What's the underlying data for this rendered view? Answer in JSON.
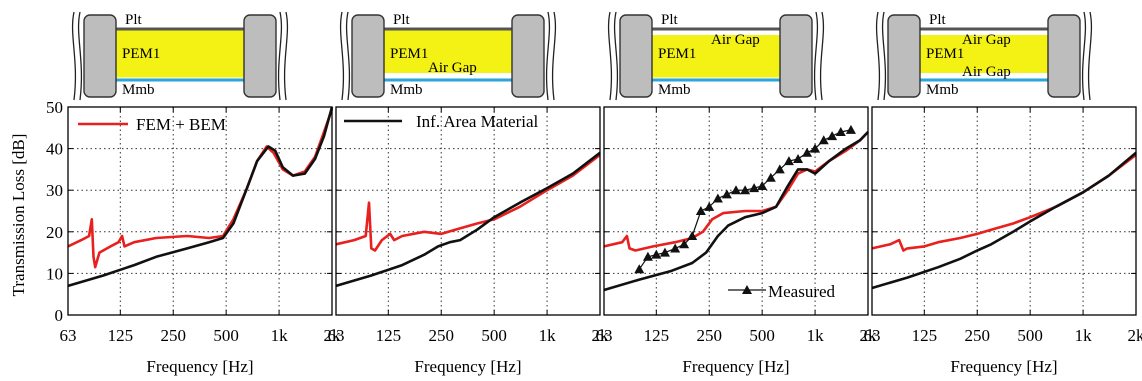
{
  "figure": {
    "ylabel": "Transmission Loss [dB]",
    "xlabel": "Frequency [Hz]"
  },
  "colors": {
    "fem_bem": "#e8201e",
    "inf_area": "#111111",
    "measured": "#111111",
    "pem_fill": "#f4f214",
    "membrane": "#2aa6d8",
    "plate": "#555555",
    "frame": "#bdbdbd"
  },
  "insets": [
    {
      "layers": [
        "Plt",
        "PEM1",
        "Mmb"
      ],
      "gap_top": false,
      "gap_bottom": false,
      "gap_labels": []
    },
    {
      "layers": [
        "Plt",
        "PEM1",
        "Mmb"
      ],
      "gap_top": false,
      "gap_bottom": true,
      "gap_labels": [
        "Air Gap"
      ]
    },
    {
      "layers": [
        "Plt",
        "PEM1",
        "Mmb"
      ],
      "gap_top": true,
      "gap_bottom": false,
      "gap_labels": [
        "Air Gap"
      ]
    },
    {
      "layers": [
        "Plt",
        "PEM1",
        "Mmb"
      ],
      "gap_top": true,
      "gap_bottom": true,
      "gap_labels": [
        "Air Gap",
        "Air Gap"
      ]
    }
  ],
  "chart_data": [
    {
      "type": "line",
      "xlabel": "Frequency [Hz]",
      "ylabel": "Transmission Loss [dB]",
      "x_scale": "log",
      "xlim": [
        63,
        2000
      ],
      "ylim": [
        0,
        50
      ],
      "x_ticks": [
        63,
        125,
        250,
        500,
        1000,
        2000
      ],
      "x_tick_labels": [
        "63",
        "125",
        "250",
        "500",
        "1k",
        "2k"
      ],
      "y_ticks": [
        0,
        10,
        20,
        30,
        40,
        50
      ],
      "grid": true,
      "legend": {
        "placement": "top-left",
        "entries": [
          "FEM + BEM"
        ]
      },
      "series": [
        {
          "name": "FEM + BEM",
          "color": "red",
          "points": [
            [
              63,
              16.5
            ],
            [
              75,
              18
            ],
            [
              83,
              19
            ],
            [
              86,
              23
            ],
            [
              88,
              14
            ],
            [
              90,
              11.5
            ],
            [
              95,
              15
            ],
            [
              110,
              16.5
            ],
            [
              122,
              17.5
            ],
            [
              128,
              19
            ],
            [
              132,
              16.5
            ],
            [
              150,
              17.5
            ],
            [
              200,
              18.5
            ],
            [
              300,
              19
            ],
            [
              400,
              18.5
            ],
            [
              480,
              19
            ],
            [
              550,
              23
            ],
            [
              650,
              30
            ],
            [
              750,
              37
            ],
            [
              850,
              40.5
            ],
            [
              930,
              39
            ],
            [
              1050,
              35
            ],
            [
              1200,
              33.5
            ],
            [
              1400,
              34.5
            ],
            [
              1600,
              38
            ],
            [
              1800,
              44
            ],
            [
              2000,
              49.5
            ]
          ]
        },
        {
          "name": "",
          "color": "black",
          "points": [
            [
              63,
              7
            ],
            [
              100,
              9.5
            ],
            [
              150,
              12
            ],
            [
              200,
              14
            ],
            [
              300,
              16
            ],
            [
              400,
              17.5
            ],
            [
              480,
              18.5
            ],
            [
              550,
              22
            ],
            [
              650,
              30
            ],
            [
              750,
              37
            ],
            [
              870,
              40.5
            ],
            [
              950,
              39.5
            ],
            [
              1050,
              35.5
            ],
            [
              1200,
              33.5
            ],
            [
              1400,
              34
            ],
            [
              1600,
              37.5
            ],
            [
              1800,
              43
            ],
            [
              2000,
              50
            ]
          ]
        }
      ]
    },
    {
      "type": "line",
      "xlabel": "Frequency [Hz]",
      "ylabel": "",
      "x_scale": "log",
      "xlim": [
        63,
        2000
      ],
      "ylim": [
        0,
        50
      ],
      "x_ticks": [
        63,
        125,
        250,
        500,
        1000,
        2000
      ],
      "x_tick_labels": [
        "63",
        "125",
        "250",
        "500",
        "1k",
        "2k"
      ],
      "y_ticks": [
        0,
        10,
        20,
        30,
        40,
        50
      ],
      "grid": true,
      "legend": {
        "placement": "top",
        "entries": [
          "Inf. Area Material"
        ]
      },
      "series": [
        {
          "name": "",
          "color": "red",
          "points": [
            [
              63,
              17
            ],
            [
              80,
              18
            ],
            [
              93,
              19
            ],
            [
              97,
              27
            ],
            [
              100,
              16
            ],
            [
              105,
              15.5
            ],
            [
              115,
              18
            ],
            [
              128,
              19.5
            ],
            [
              135,
              18
            ],
            [
              150,
              19
            ],
            [
              200,
              20
            ],
            [
              250,
              19.5
            ],
            [
              300,
              20.5
            ],
            [
              400,
              22
            ],
            [
              500,
              23
            ],
            [
              700,
              26
            ],
            [
              1000,
              30
            ],
            [
              1400,
              33.5
            ],
            [
              2000,
              38.5
            ]
          ]
        },
        {
          "name": "Inf. Area Material",
          "color": "black",
          "points": [
            [
              63,
              7
            ],
            [
              100,
              9.5
            ],
            [
              150,
              12
            ],
            [
              200,
              14.5
            ],
            [
              240,
              16.5
            ],
            [
              280,
              17.5
            ],
            [
              320,
              18
            ],
            [
              400,
              20.5
            ],
            [
              500,
              23.5
            ],
            [
              700,
              27
            ],
            [
              1000,
              30.5
            ],
            [
              1400,
              34
            ],
            [
              2000,
              39
            ]
          ]
        }
      ]
    },
    {
      "type": "line",
      "xlabel": "Frequency [Hz]",
      "ylabel": "",
      "x_scale": "log",
      "xlim": [
        63,
        2000
      ],
      "ylim": [
        0,
        50
      ],
      "x_ticks": [
        63,
        125,
        250,
        500,
        1000,
        2000
      ],
      "x_tick_labels": [
        "63",
        "125",
        "250",
        "500",
        "1k",
        "2k"
      ],
      "y_ticks": [
        0,
        10,
        20,
        30,
        40,
        50
      ],
      "grid": true,
      "legend": {
        "placement": "bottom-right",
        "entries": [
          "Measured"
        ]
      },
      "series": [
        {
          "name": "",
          "color": "red",
          "points": [
            [
              63,
              16.5
            ],
            [
              80,
              17.5
            ],
            [
              85,
              19
            ],
            [
              88,
              16
            ],
            [
              95,
              15.5
            ],
            [
              120,
              16.5
            ],
            [
              160,
              17.5
            ],
            [
              200,
              18.5
            ],
            [
              230,
              20
            ],
            [
              260,
              23
            ],
            [
              300,
              24.5
            ],
            [
              400,
              25
            ],
            [
              500,
              25
            ],
            [
              600,
              26
            ],
            [
              700,
              30
            ],
            [
              800,
              34
            ],
            [
              900,
              35
            ],
            [
              1000,
              34.5
            ],
            [
              1200,
              37
            ],
            [
              1500,
              39.5
            ],
            [
              1800,
              42
            ],
            [
              2000,
              44
            ]
          ]
        },
        {
          "name": "",
          "color": "black",
          "points": [
            [
              63,
              6
            ],
            [
              100,
              8.5
            ],
            [
              150,
              10.5
            ],
            [
              200,
              12.5
            ],
            [
              240,
              15
            ],
            [
              280,
              19
            ],
            [
              320,
              21.5
            ],
            [
              400,
              23.5
            ],
            [
              500,
              24.5
            ],
            [
              600,
              26
            ],
            [
              700,
              31
            ],
            [
              800,
              35
            ],
            [
              900,
              35
            ],
            [
              1000,
              34
            ],
            [
              1200,
              37
            ],
            [
              1500,
              40
            ],
            [
              1800,
              42
            ],
            [
              2000,
              44
            ]
          ]
        },
        {
          "name": "Measured",
          "color": "black",
          "marker": "triangle",
          "points": [
            [
              100,
              11
            ],
            [
              112,
              14
            ],
            [
              125,
              14.5
            ],
            [
              140,
              15
            ],
            [
              160,
              16
            ],
            [
              180,
              17
            ],
            [
              200,
              19
            ],
            [
              224,
              25
            ],
            [
              250,
              26
            ],
            [
              280,
              28
            ],
            [
              315,
              29
            ],
            [
              355,
              30
            ],
            [
              400,
              30
            ],
            [
              450,
              30.5
            ],
            [
              500,
              31
            ],
            [
              560,
              33
            ],
            [
              630,
              35
            ],
            [
              710,
              37
            ],
            [
              800,
              37.5
            ],
            [
              900,
              39
            ],
            [
              1000,
              40
            ],
            [
              1120,
              42
            ],
            [
              1250,
              43
            ],
            [
              1400,
              44
            ],
            [
              1600,
              44.5
            ]
          ]
        }
      ]
    },
    {
      "type": "line",
      "xlabel": "Frequency [Hz]",
      "ylabel": "",
      "x_scale": "log",
      "xlim": [
        63,
        2000
      ],
      "ylim": [
        0,
        50
      ],
      "x_ticks": [
        63,
        125,
        250,
        500,
        1000,
        2000
      ],
      "x_tick_labels": [
        "63",
        "125",
        "250",
        "500",
        "1k",
        "2k"
      ],
      "y_ticks": [
        0,
        10,
        20,
        30,
        40,
        50
      ],
      "grid": true,
      "legend": null,
      "series": [
        {
          "name": "",
          "color": "red",
          "points": [
            [
              63,
              16
            ],
            [
              80,
              17
            ],
            [
              90,
              18
            ],
            [
              95,
              15.5
            ],
            [
              100,
              16
            ],
            [
              125,
              16.5
            ],
            [
              150,
              17.5
            ],
            [
              200,
              18.5
            ],
            [
              250,
              19.5
            ],
            [
              300,
              20.5
            ],
            [
              400,
              22
            ],
            [
              500,
              23.5
            ],
            [
              700,
              26
            ],
            [
              1000,
              29.5
            ],
            [
              1400,
              33.5
            ],
            [
              2000,
              38.5
            ]
          ]
        },
        {
          "name": "",
          "color": "black",
          "points": [
            [
              63,
              6.5
            ],
            [
              100,
              9
            ],
            [
              150,
              11.5
            ],
            [
              200,
              13.5
            ],
            [
              250,
              15.5
            ],
            [
              300,
              17
            ],
            [
              400,
              20
            ],
            [
              500,
              22.5
            ],
            [
              700,
              26
            ],
            [
              1000,
              29.5
            ],
            [
              1400,
              33.5
            ],
            [
              2000,
              39
            ]
          ]
        }
      ]
    }
  ]
}
